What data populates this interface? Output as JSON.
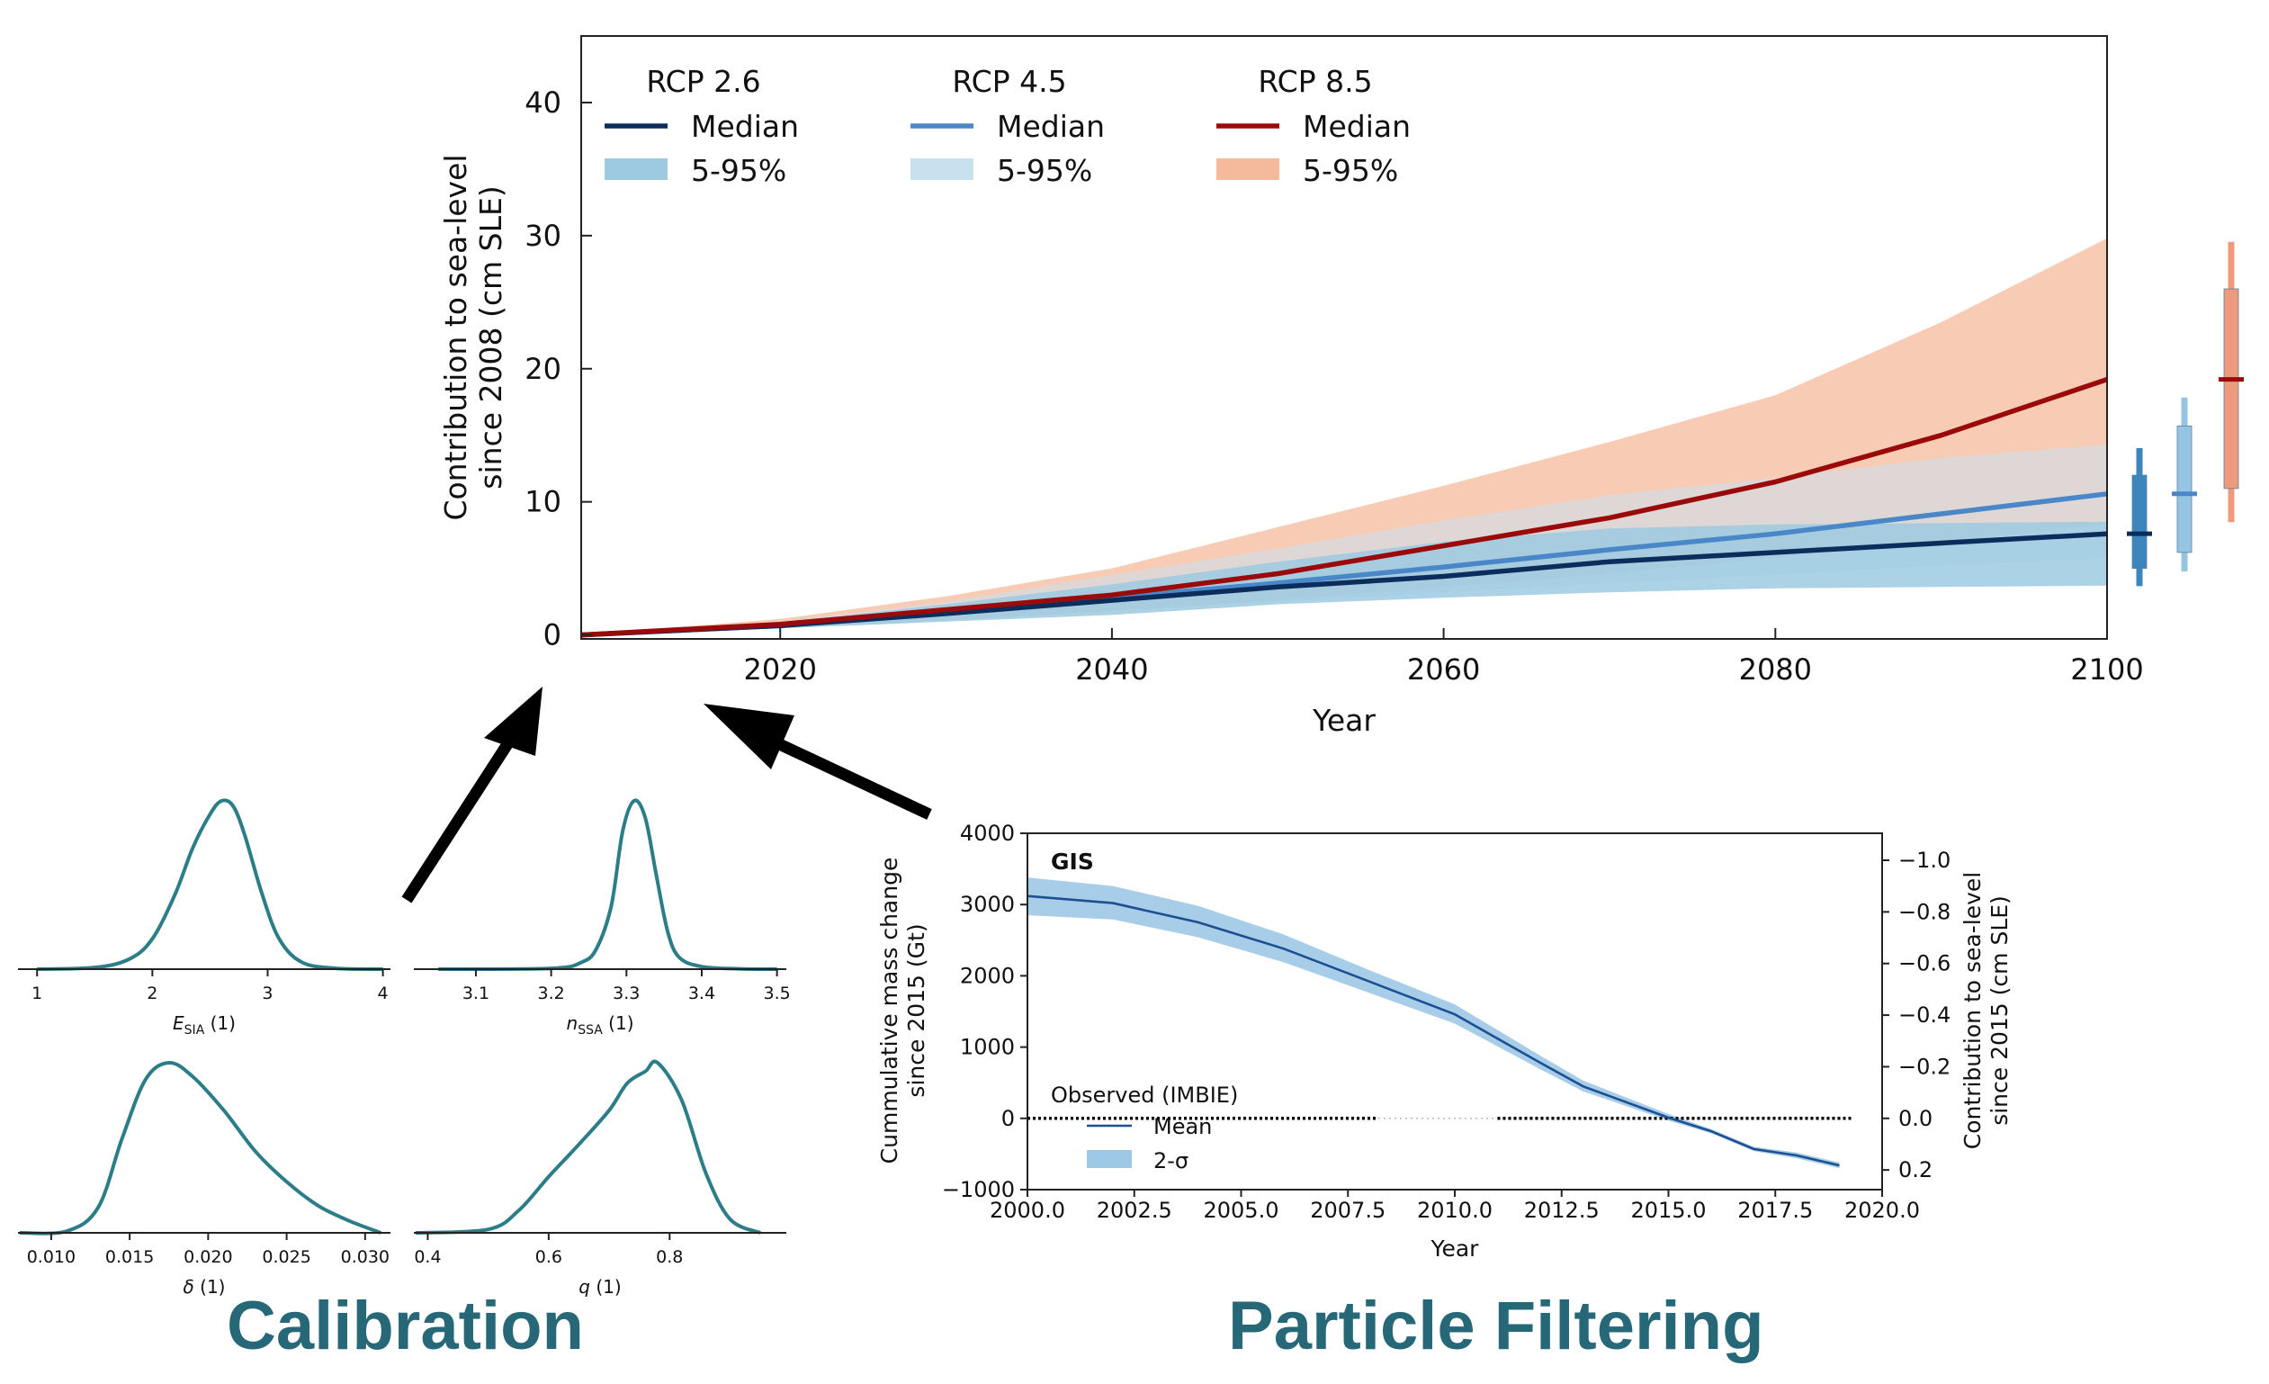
{
  "colors": {
    "rcp26_median": "#0b2d5c",
    "rcp26_band": "#9ecae1",
    "rcp45_median": "#4a87c8",
    "rcp45_band": "#c8e1ef",
    "rcp85_median": "#9b0a0a",
    "rcp85_band": "#f5b99c",
    "kde": "#2b7d87",
    "obs_band": "#9dc8e6",
    "obs_mean": "#1d4f93",
    "label": "#266877"
  },
  "labels": {
    "calibration": "Calibration",
    "particle_filtering": "Particle Filtering"
  },
  "chart_data": [
    {
      "id": "projection",
      "type": "line",
      "xlabel": "Year",
      "ylabel_lines": [
        "Contribution to sea-level",
        "since 2008 (cm SLE)"
      ],
      "xlim": [
        2008,
        2100
      ],
      "ylim": [
        -0.3,
        45
      ],
      "xticks": [
        2020,
        2040,
        2060,
        2080,
        2100
      ],
      "yticks": [
        0,
        10,
        20,
        30,
        40
      ],
      "legend": [
        {
          "title": "RCP 2.6",
          "median": "Median",
          "band": "5-95%"
        },
        {
          "title": "RCP 4.5",
          "median": "Median",
          "band": "5-95%"
        },
        {
          "title": "RCP 8.5",
          "median": "Median",
          "band": "5-95%"
        }
      ],
      "x": [
        2008,
        2020,
        2030,
        2040,
        2050,
        2060,
        2070,
        2080,
        2090,
        2100
      ],
      "series": [
        {
          "name": "RCP 2.6",
          "median": [
            0,
            0.7,
            1.6,
            2.6,
            3.6,
            4.4,
            5.5,
            6.2,
            6.9,
            7.6
          ],
          "p5": [
            0,
            0.5,
            1.0,
            1.5,
            2.3,
            2.8,
            3.2,
            3.5,
            3.6,
            3.7
          ],
          "p95": [
            0,
            0.9,
            2.3,
            3.8,
            5.5,
            7.0,
            8.0,
            8.3,
            8.4,
            8.5
          ],
          "box": {
            "whisker": [
              3.7,
              14.0
            ],
            "box": [
              5.0,
              12.0
            ],
            "median": 7.6
          }
        },
        {
          "name": "RCP 4.5",
          "median": [
            0,
            0.7,
            1.7,
            2.8,
            3.9,
            5.1,
            6.4,
            7.6,
            9.1,
            10.6
          ],
          "p5": [
            0,
            0.5,
            1.1,
            1.7,
            2.5,
            3.2,
            3.9,
            4.5,
            5.2,
            5.8
          ],
          "p95": [
            0,
            1.0,
            2.5,
            4.5,
            6.5,
            8.6,
            10.5,
            11.8,
            13.3,
            14.3
          ],
          "box": {
            "whisker": [
              4.8,
              17.8
            ],
            "box": [
              6.2,
              15.7
            ],
            "median": 10.6
          }
        },
        {
          "name": "RCP 8.5",
          "median": [
            0,
            0.8,
            1.9,
            3.0,
            4.6,
            6.7,
            8.8,
            11.5,
            15.0,
            19.2
          ],
          "p5": [
            0,
            0.5,
            1.1,
            1.8,
            2.6,
            3.6,
            4.6,
            5.8,
            7.0,
            8.3
          ],
          "p95": [
            0,
            1.2,
            2.9,
            5.0,
            8.1,
            11.2,
            14.5,
            18.0,
            23.5,
            29.8
          ],
          "box": {
            "whisker": [
              8.5,
              29.5
            ],
            "box": [
              11.0,
              26.0
            ],
            "median": 19.2
          }
        }
      ]
    },
    {
      "id": "kde-esia",
      "type": "area",
      "xlabel": "E",
      "xlabel_sub": "SIA",
      "xlabel_unit": " (1)",
      "xticks": [
        1,
        2,
        3,
        4
      ],
      "xlim": [
        0.85,
        4.05
      ],
      "x": [
        1.0,
        1.5,
        1.8,
        2.0,
        2.2,
        2.35,
        2.5,
        2.6,
        2.7,
        2.8,
        2.95,
        3.1,
        3.3,
        3.6,
        4.0
      ],
      "density": [
        0,
        0.01,
        0.06,
        0.18,
        0.45,
        0.72,
        0.92,
        1.0,
        0.97,
        0.8,
        0.45,
        0.18,
        0.04,
        0.005,
        0
      ]
    },
    {
      "id": "kde-nssa",
      "type": "area",
      "xlabel": "n",
      "xlabel_sub": "SSA",
      "xlabel_unit": " (1)",
      "xticks": [
        3.1,
        3.2,
        3.3,
        3.4,
        3.5
      ],
      "xlim": [
        3.02,
        3.51
      ],
      "x": [
        3.05,
        3.2,
        3.24,
        3.26,
        3.28,
        3.295,
        3.31,
        3.325,
        3.34,
        3.355,
        3.37,
        3.4,
        3.45,
        3.5
      ],
      "density": [
        0,
        0.005,
        0.04,
        0.12,
        0.38,
        0.82,
        1.0,
        0.9,
        0.55,
        0.22,
        0.07,
        0.015,
        0.002,
        0
      ]
    },
    {
      "id": "kde-delta",
      "type": "area",
      "xlabel": "δ",
      "xlabel_sub": "",
      "xlabel_unit": " (1)",
      "xticks": [
        0.01,
        0.015,
        0.02,
        0.025,
        0.03
      ],
      "xlim": [
        0.008,
        0.0315
      ],
      "x": [
        0.008,
        0.011,
        0.013,
        0.0145,
        0.016,
        0.0175,
        0.019,
        0.021,
        0.023,
        0.025,
        0.027,
        0.029,
        0.031
      ],
      "density": [
        0,
        0.01,
        0.15,
        0.55,
        0.9,
        1.0,
        0.92,
        0.72,
        0.48,
        0.3,
        0.16,
        0.07,
        0
      ]
    },
    {
      "id": "kde-q",
      "type": "area",
      "xlabel": "q",
      "xlabel_sub": "",
      "xlabel_unit": " (1)",
      "xticks": [
        0.4,
        0.6,
        0.8
      ],
      "xlim": [
        0.38,
        0.99
      ],
      "x": [
        0.38,
        0.5,
        0.55,
        0.6,
        0.65,
        0.7,
        0.73,
        0.76,
        0.78,
        0.82,
        0.86,
        0.9,
        0.95
      ],
      "density": [
        0,
        0.02,
        0.13,
        0.33,
        0.52,
        0.72,
        0.88,
        0.95,
        1.0,
        0.78,
        0.35,
        0.08,
        0
      ]
    },
    {
      "id": "gis-observations",
      "type": "line",
      "title": "GIS",
      "xlabel": "Year",
      "ylabel_lines": [
        "Cummulative mass change",
        "since 2015 (Gt)"
      ],
      "ylabel_right_lines": [
        "Contribution to sea-level",
        "since 2015 (cm SLE)"
      ],
      "xlim": [
        2000,
        2020
      ],
      "ylim": [
        -1000,
        4000
      ],
      "xticks": [
        2000.0,
        2002.5,
        2005.0,
        2007.5,
        2010.0,
        2012.5,
        2015.0,
        2017.5,
        2020.0
      ],
      "xtick_labels": [
        "2000.0",
        "2002.5",
        "2005.0",
        "2007.5",
        "2010.0",
        "2012.5",
        "2015.0",
        "2017.5",
        "2020.0"
      ],
      "yticks": [
        -1000,
        0,
        1000,
        2000,
        3000,
        4000
      ],
      "ytick_labels": [
        "−1000",
        "0",
        "1000",
        "2000",
        "3000",
        "4000"
      ],
      "yticks_right_labels": [
        "0.2",
        "0.0",
        "−0.2",
        "−0.4",
        "−0.6",
        "−0.8",
        "−1.0"
      ],
      "yticks_right_values": [
        0.2,
        0.0,
        -0.2,
        -0.4,
        -0.6,
        -0.8,
        -1.0
      ],
      "legend_title": "Observed (IMBIE)",
      "legend": [
        "Mean",
        "2-σ"
      ],
      "x": [
        2000,
        2002,
        2004,
        2006,
        2008,
        2010,
        2012,
        2013,
        2015,
        2016,
        2017,
        2018,
        2019
      ],
      "mean": [
        3120,
        3020,
        2750,
        2380,
        1920,
        1460,
        780,
        450,
        10,
        -180,
        -430,
        -520,
        -660
      ],
      "sigma2_upper": [
        3380,
        3260,
        2980,
        2580,
        2080,
        1600,
        880,
        530,
        60,
        -150,
        -400,
        -480,
        -620
      ],
      "sigma2_lower": [
        2850,
        2790,
        2540,
        2190,
        1760,
        1330,
        690,
        380,
        -30,
        -210,
        -460,
        -560,
        -700
      ]
    }
  ]
}
